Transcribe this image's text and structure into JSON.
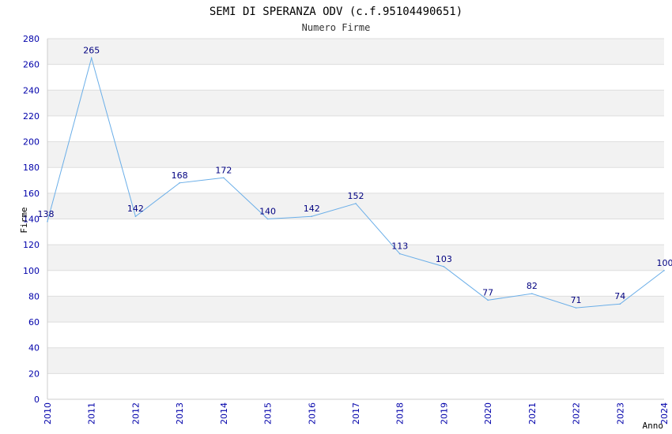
{
  "chart_data": {
    "type": "line",
    "title": "SEMI DI SPERANZA ODV (c.f.95104490651)",
    "subtitle": "Numero Firme",
    "xlabel": "Anno",
    "ylabel": "Firme",
    "x": [
      2010,
      2011,
      2012,
      2013,
      2014,
      2015,
      2016,
      2017,
      2018,
      2019,
      2020,
      2021,
      2022,
      2023,
      2024
    ],
    "values": [
      138,
      265,
      142,
      168,
      172,
      140,
      142,
      152,
      113,
      103,
      77,
      82,
      71,
      74,
      100
    ],
    "ylim": [
      0,
      280
    ],
    "yticks": [
      0,
      20,
      40,
      60,
      80,
      100,
      120,
      140,
      160,
      180,
      200,
      220,
      240,
      260,
      280
    ],
    "grid": true,
    "colors": {
      "line": "#6aaee8",
      "band": "#f2f2f2",
      "grid": "#dddddd",
      "ticks": "#0000aa",
      "labels": "#000080"
    }
  }
}
